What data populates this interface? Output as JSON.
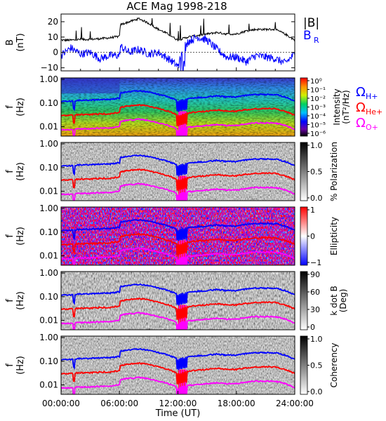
{
  "title": "ACE Mag 1998-218",
  "chart_data": [
    {
      "type": "line",
      "panel": "magnetic field",
      "ylabel_lines": [
        "B",
        "(nT)"
      ],
      "ylim": [
        -12,
        25
      ],
      "yticks": [
        -10,
        0,
        10,
        20
      ],
      "legend": [
        {
          "text": "|B|",
          "color": "#000000"
        },
        {
          "text": "B",
          "sub": "R",
          "color": "#0000ff"
        }
      ],
      "series": [
        {
          "name": "|B|",
          "color": "#000000",
          "x": [
            0,
            1,
            2,
            3,
            4,
            5,
            6,
            6.1,
            7,
            8,
            9,
            10,
            11,
            12,
            12.5,
            13,
            14,
            15,
            16,
            17,
            18,
            19,
            20,
            21,
            22,
            23,
            24
          ],
          "y": [
            8,
            8,
            8.5,
            8.5,
            9,
            9.5,
            10.5,
            18,
            20,
            22,
            19,
            15,
            12,
            8,
            9,
            10,
            11,
            12,
            13,
            12,
            12,
            14,
            15,
            15,
            15,
            12,
            8
          ]
        },
        {
          "name": "B_R",
          "color": "#0000ff",
          "x": [
            0,
            1,
            2,
            3,
            4,
            5,
            6,
            6.1,
            7,
            8,
            9,
            10,
            11,
            12,
            12.5,
            13,
            14,
            15,
            16,
            17,
            18,
            19,
            20,
            21,
            22,
            23,
            24
          ],
          "y": [
            -2,
            3,
            -1,
            0,
            -4,
            -2,
            -2,
            4,
            0,
            2,
            -1,
            0,
            -4,
            -9,
            -5,
            7,
            10,
            8,
            2,
            -3,
            -3,
            -6,
            -2,
            -3,
            -4,
            -7,
            -1
          ]
        }
      ]
    },
    {
      "type": "heatmap",
      "panel": "intensity",
      "ylabel_lines": [
        "f",
        "(Hz)"
      ],
      "ytick_labels": [
        "1.00",
        "0.10",
        "0.01"
      ],
      "colorbar_label_lines": [
        "Intensity",
        "(nT²/Hz)"
      ],
      "colorbar_ticks": [
        "10⁰",
        "10⁻¹",
        "10⁻²",
        "10⁻³",
        "10⁻⁴",
        "10⁻⁵",
        "10⁻⁶"
      ],
      "gyro_labels": [
        {
          "symbol": "Ω",
          "sub": "H+",
          "color": "#0000ff"
        },
        {
          "symbol": "Ω",
          "sub": "He+",
          "color": "#ff0000"
        },
        {
          "symbol": "Ω",
          "sub": "O+",
          "color": "#ff00ff"
        }
      ]
    },
    {
      "type": "heatmap",
      "panel": "polarization",
      "ylabel_lines": [
        "f",
        "(Hz)"
      ],
      "ytick_labels": [
        "1.00",
        "0.10",
        "0.01"
      ],
      "colorbar_label_lines": [
        "% Polarization"
      ],
      "colorbar_ticks": [
        "1.0",
        "0.5",
        "0.0"
      ]
    },
    {
      "type": "heatmap",
      "panel": "ellipticity",
      "ylabel_lines": [
        "f",
        "(Hz)"
      ],
      "ytick_labels": [
        "1.00",
        "0.10",
        "0.01"
      ],
      "colorbar_label_lines": [
        "Ellipticity"
      ],
      "colorbar_ticks": [
        "1",
        "0",
        "−1"
      ]
    },
    {
      "type": "heatmap",
      "panel": "k dot B",
      "ylabel_lines": [
        "f",
        "(Hz)"
      ],
      "ytick_labels": [
        "1.00",
        "0.10",
        "0.01"
      ],
      "colorbar_label_lines": [
        "k dot B",
        "(Deg)"
      ],
      "colorbar_ticks": [
        "90",
        "60",
        "30",
        "0"
      ]
    },
    {
      "type": "heatmap",
      "panel": "coherency",
      "ylabel_lines": [
        "f",
        "(Hz)"
      ],
      "ytick_labels": [
        "1.00",
        "0.10",
        "0.01"
      ],
      "colorbar_label_lines": [
        "Coherency"
      ],
      "colorbar_ticks": [
        "1.0",
        "0.5",
        "0.0"
      ]
    }
  ],
  "gyrofrequency_curves": {
    "x_hours": [
      0,
      1,
      2,
      3,
      4,
      5,
      6,
      6.1,
      7,
      8,
      9,
      10,
      11,
      12,
      12.5,
      13,
      14,
      15,
      16,
      17,
      18,
      19,
      20,
      21,
      22,
      23,
      24
    ],
    "H_plus_hz": [
      0.12,
      0.12,
      0.13,
      0.13,
      0.14,
      0.14,
      0.16,
      0.27,
      0.3,
      0.33,
      0.29,
      0.23,
      0.18,
      0.12,
      0.14,
      0.15,
      0.17,
      0.18,
      0.2,
      0.18,
      0.18,
      0.21,
      0.23,
      0.23,
      0.23,
      0.18,
      0.12
    ]
  },
  "xaxis": {
    "label": "Time (UT)",
    "range_hours": [
      0,
      24
    ],
    "tick_labels": [
      "00:00:00",
      "06:00:00",
      "12:00:00",
      "18:00:00",
      "24:00:00"
    ]
  }
}
